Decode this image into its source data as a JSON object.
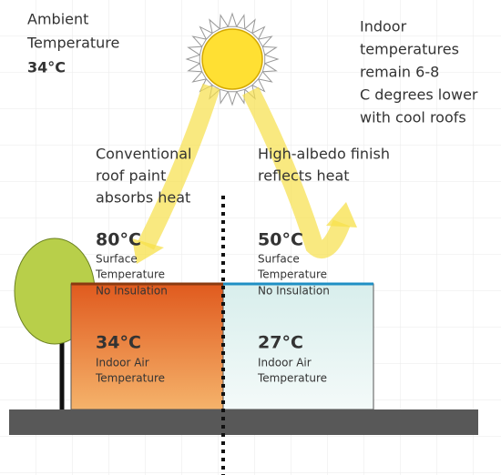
{
  "ambient": {
    "lines": [
      "Ambient",
      "Temperature"
    ],
    "value": "34°C"
  },
  "note": {
    "lines": [
      "Indoor",
      "temperatures",
      "remain 6-8",
      "C degrees lower",
      "with cool roofs"
    ]
  },
  "conventional": {
    "caption": [
      "Conventional",
      "roof paint",
      "absorbs heat"
    ],
    "surface_value": "80°C",
    "surface_label": [
      "Surface",
      "Temperature",
      "No Insulation"
    ],
    "indoor_value": "34°C",
    "indoor_label": [
      "Indoor Air",
      "Temperature"
    ]
  },
  "cool_roof": {
    "caption": [
      "High-albedo finish",
      "reflects heat"
    ],
    "surface_value": "50°C",
    "surface_label": [
      "Surface",
      "Temperature",
      "No Insulation"
    ],
    "indoor_value": "27°C",
    "indoor_label": [
      "Indoor Air",
      "Temperature"
    ]
  }
}
